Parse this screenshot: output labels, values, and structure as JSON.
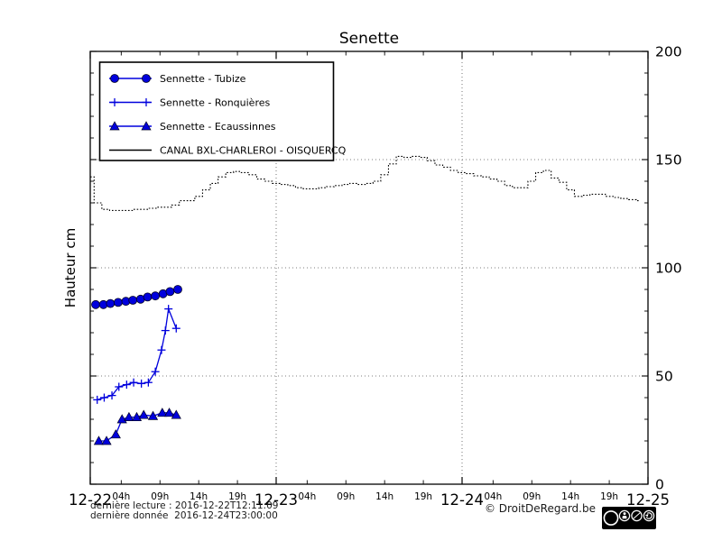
{
  "footer": {
    "line1": "dernière lecture : 2016-12-22T12:11:09",
    "line2": "dernière donnée  2016-12-24T23:00:00",
    "copyright": "© DroitDeRegard.be",
    "cc_logo": "cc",
    "license": [
      "BY",
      "NC",
      "SA"
    ]
  },
  "chart_data": {
    "type": "line",
    "title": "Senette",
    "ylabel": "Hauteur cm",
    "xlabel": "",
    "ylim": [
      0,
      200
    ],
    "yticks": [
      0,
      50,
      100,
      150,
      200
    ],
    "y_minor_step": 10,
    "xlim_hours": [
      0,
      72
    ],
    "x_day_ticks": [
      {
        "hour": 0,
        "label": "12-22"
      },
      {
        "hour": 24,
        "label": "12-23"
      },
      {
        "hour": 48,
        "label": "12-24"
      },
      {
        "hour": 72,
        "label": "12-25"
      }
    ],
    "x_hour_ticks": [
      {
        "offset": 4,
        "label": "04h"
      },
      {
        "offset": 9,
        "label": "09h"
      },
      {
        "offset": 14,
        "label": "14h"
      },
      {
        "offset": 19,
        "label": "19h"
      }
    ],
    "grid": "dotted",
    "legend_position": "upper-left",
    "colors": {
      "blue": "#0000dd",
      "black": "#000000",
      "grid": "#555555"
    },
    "series": [
      {
        "name": "Sennette - Tubize",
        "marker": "circle",
        "color": "#0000dd",
        "x": [
          0.7,
          1.7,
          2.6,
          3.6,
          4.6,
          5.5,
          6.5,
          7.4,
          8.4,
          9.4,
          10.3,
          11.3
        ],
        "y": [
          83,
          83,
          83.5,
          84,
          84.5,
          85,
          85.5,
          86.5,
          87,
          88,
          89,
          90
        ]
      },
      {
        "name": "Sennette - Ronquières",
        "marker": "plus",
        "color": "#0000dd",
        "x": [
          0.9,
          1.8,
          2.8,
          3.7,
          4.7,
          5.6,
          6.6,
          7.5,
          8.4,
          9.2,
          9.7,
          10.1,
          11.1
        ],
        "y": [
          39,
          40,
          41,
          45,
          46,
          47,
          46.5,
          47,
          52,
          62,
          71,
          81,
          72
        ]
      },
      {
        "name": "Sennette - Ecaussinnes",
        "marker": "triangle",
        "color": "#0000dd",
        "x": [
          1.1,
          2.1,
          3.3,
          4.1,
          5.0,
          6.0,
          6.9,
          8.1,
          9.3,
          10.2,
          11.1
        ],
        "y": [
          20,
          20,
          23,
          30,
          31,
          31,
          32,
          31.5,
          33,
          33,
          32
        ]
      },
      {
        "name": "CANAL BXL-CHARLEROI  - OISQUERCQ",
        "marker": "none",
        "color": "#000000",
        "style": "dotted-steps",
        "x_start": 0,
        "x_step": 1,
        "y": [
          142,
          130,
          127,
          126.5,
          126.5,
          126.5,
          127,
          127,
          127.5,
          128,
          128,
          129,
          131,
          131,
          133,
          136,
          139,
          142,
          144,
          144.5,
          144,
          143,
          141,
          140,
          139,
          138.5,
          138,
          137,
          136.5,
          136.5,
          137,
          137.5,
          138,
          138.5,
          139,
          138.5,
          139,
          140,
          143,
          148,
          151.5,
          151,
          151.5,
          151,
          149.5,
          147.5,
          146.5,
          145,
          144,
          143.5,
          142.5,
          142,
          141,
          140,
          138,
          137,
          137,
          140,
          144,
          145,
          141.5,
          139.5,
          136,
          133,
          133.5,
          134,
          134,
          133,
          132.5,
          132,
          131.5,
          131
        ]
      }
    ]
  }
}
